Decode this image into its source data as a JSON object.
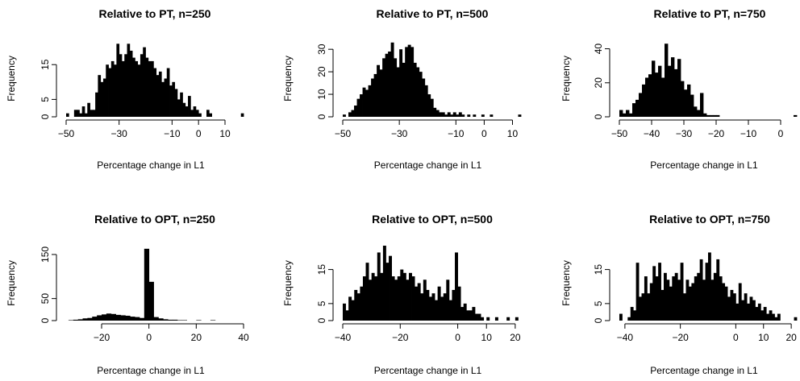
{
  "chart_data": [
    {
      "type": "histogram",
      "title": "Relative to PT, n=250",
      "xlabel": "Percentage change in L1",
      "ylabel": "Frequency",
      "xlim": [
        -50,
        17
      ],
      "ylim": [
        0,
        22
      ],
      "xticks": [
        -50,
        -30,
        -10,
        0,
        10
      ],
      "yticks": [
        0,
        5,
        15
      ],
      "bin_width": 1,
      "bins_start": -50,
      "counts": [
        1,
        0,
        0,
        2,
        2,
        1,
        3,
        1,
        4,
        2,
        2,
        7,
        12,
        10,
        11,
        15,
        14,
        16,
        15,
        21,
        18,
        16,
        18,
        21,
        19,
        17,
        16,
        15,
        18,
        20,
        17,
        16,
        16,
        14,
        12,
        13,
        10,
        11,
        14,
        9,
        10,
        8,
        5,
        7,
        4,
        3,
        6,
        2,
        3,
        2,
        1,
        0,
        0,
        2,
        1,
        0,
        0,
        0,
        0,
        0,
        0,
        0,
        0,
        0,
        0,
        0,
        1
      ]
    },
    {
      "type": "histogram",
      "title": "Relative to PT, n=500",
      "xlabel": "Percentage change in L1",
      "ylabel": "Frequency",
      "xlim": [
        -50,
        13
      ],
      "ylim": [
        0,
        34
      ],
      "xticks": [
        -50,
        -30,
        -10,
        0,
        10
      ],
      "yticks": [
        0,
        10,
        20,
        30
      ],
      "bin_width": 1,
      "bins_start": -50,
      "counts": [
        1,
        0,
        2,
        3,
        5,
        8,
        10,
        13,
        12,
        14,
        17,
        19,
        23,
        21,
        26,
        28,
        29,
        33,
        26,
        22,
        30,
        24,
        31,
        32,
        31,
        24,
        22,
        20,
        17,
        14,
        10,
        8,
        4,
        3,
        2,
        2,
        1,
        2,
        1,
        2,
        1,
        2,
        1,
        0,
        1,
        0,
        1,
        0,
        0,
        1,
        0,
        0,
        1,
        0,
        0,
        0,
        0,
        0,
        0,
        0,
        0,
        0,
        1
      ]
    },
    {
      "type": "histogram",
      "title": "Relative to PT, n=750",
      "xlabel": "Percentage change in L1",
      "ylabel": "Frequency",
      "xlim": [
        -50,
        5
      ],
      "ylim": [
        0,
        45
      ],
      "xticks": [
        -50,
        -40,
        -30,
        -20,
        -10,
        0
      ],
      "yticks": [
        0,
        20,
        40
      ],
      "bin_width": 1,
      "bins_start": -50,
      "counts": [
        4,
        2,
        4,
        2,
        8,
        10,
        14,
        19,
        23,
        25,
        33,
        26,
        30,
        23,
        43,
        30,
        35,
        28,
        34,
        21,
        16,
        19,
        13,
        6,
        4,
        14,
        2,
        1,
        1,
        1,
        1,
        0,
        0,
        0,
        0,
        0,
        0,
        0,
        0,
        0,
        0,
        0,
        0,
        0,
        0,
        0,
        0,
        0,
        0,
        0,
        0,
        0,
        0,
        0,
        1
      ]
    },
    {
      "type": "histogram",
      "title": "Relative to OPT, n=250",
      "xlabel": "Percentage change in L1",
      "ylabel": "Frequency",
      "xlim": [
        -35,
        40
      ],
      "ylim": [
        0,
        170
      ],
      "xticks": [
        -20,
        0,
        20,
        40
      ],
      "yticks": [
        0,
        50,
        150
      ],
      "bin_width": 2,
      "bins_start": -34,
      "counts": [
        1,
        2,
        3,
        5,
        6,
        9,
        12,
        14,
        16,
        15,
        13,
        12,
        11,
        9,
        8,
        6,
        163,
        88,
        8,
        5,
        3,
        2,
        2,
        1,
        1,
        0,
        0,
        1,
        0,
        0,
        1,
        0,
        0,
        0,
        0,
        0,
        0
      ]
    },
    {
      "type": "histogram",
      "title": "Relative to OPT, n=500",
      "xlabel": "Percentage change in L1",
      "ylabel": "Frequency",
      "xlim": [
        -40,
        22
      ],
      "ylim": [
        0,
        22
      ],
      "xticks": [
        -40,
        -20,
        0,
        10,
        20
      ],
      "yticks": [
        0,
        5,
        15
      ],
      "bin_width": 1,
      "bins_start": -40,
      "counts": [
        5,
        3,
        7,
        6,
        9,
        8,
        10,
        13,
        17,
        12,
        14,
        13,
        20,
        14,
        22,
        17,
        19,
        13,
        12,
        13,
        15,
        14,
        12,
        14,
        13,
        10,
        11,
        8,
        12,
        9,
        7,
        8,
        6,
        10,
        7,
        8,
        12,
        6,
        9,
        20,
        10,
        4,
        5,
        3,
        3,
        4,
        2,
        2,
        1,
        0,
        1,
        0,
        0,
        1,
        0,
        0,
        0,
        1,
        0,
        0,
        1
      ]
    },
    {
      "type": "histogram",
      "title": "Relative to OPT, n=750",
      "xlabel": "Percentage change in L1",
      "ylabel": "Frequency",
      "xlim": [
        -42,
        22
      ],
      "ylim": [
        0,
        22
      ],
      "xticks": [
        -40,
        -20,
        0,
        10,
        20
      ],
      "yticks": [
        0,
        5,
        15
      ],
      "bin_width": 1,
      "bins_start": -42,
      "counts": [
        2,
        0,
        0,
        1,
        4,
        3,
        17,
        7,
        8,
        13,
        8,
        11,
        16,
        13,
        17,
        9,
        14,
        12,
        10,
        13,
        14,
        12,
        17,
        8,
        12,
        10,
        11,
        13,
        14,
        18,
        12,
        17,
        20,
        12,
        14,
        18,
        13,
        11,
        10,
        7,
        9,
        8,
        5,
        11,
        6,
        8,
        5,
        7,
        6,
        4,
        5,
        3,
        4,
        2,
        3,
        2,
        1,
        2,
        0,
        0,
        0,
        0,
        0,
        1
      ]
    }
  ]
}
